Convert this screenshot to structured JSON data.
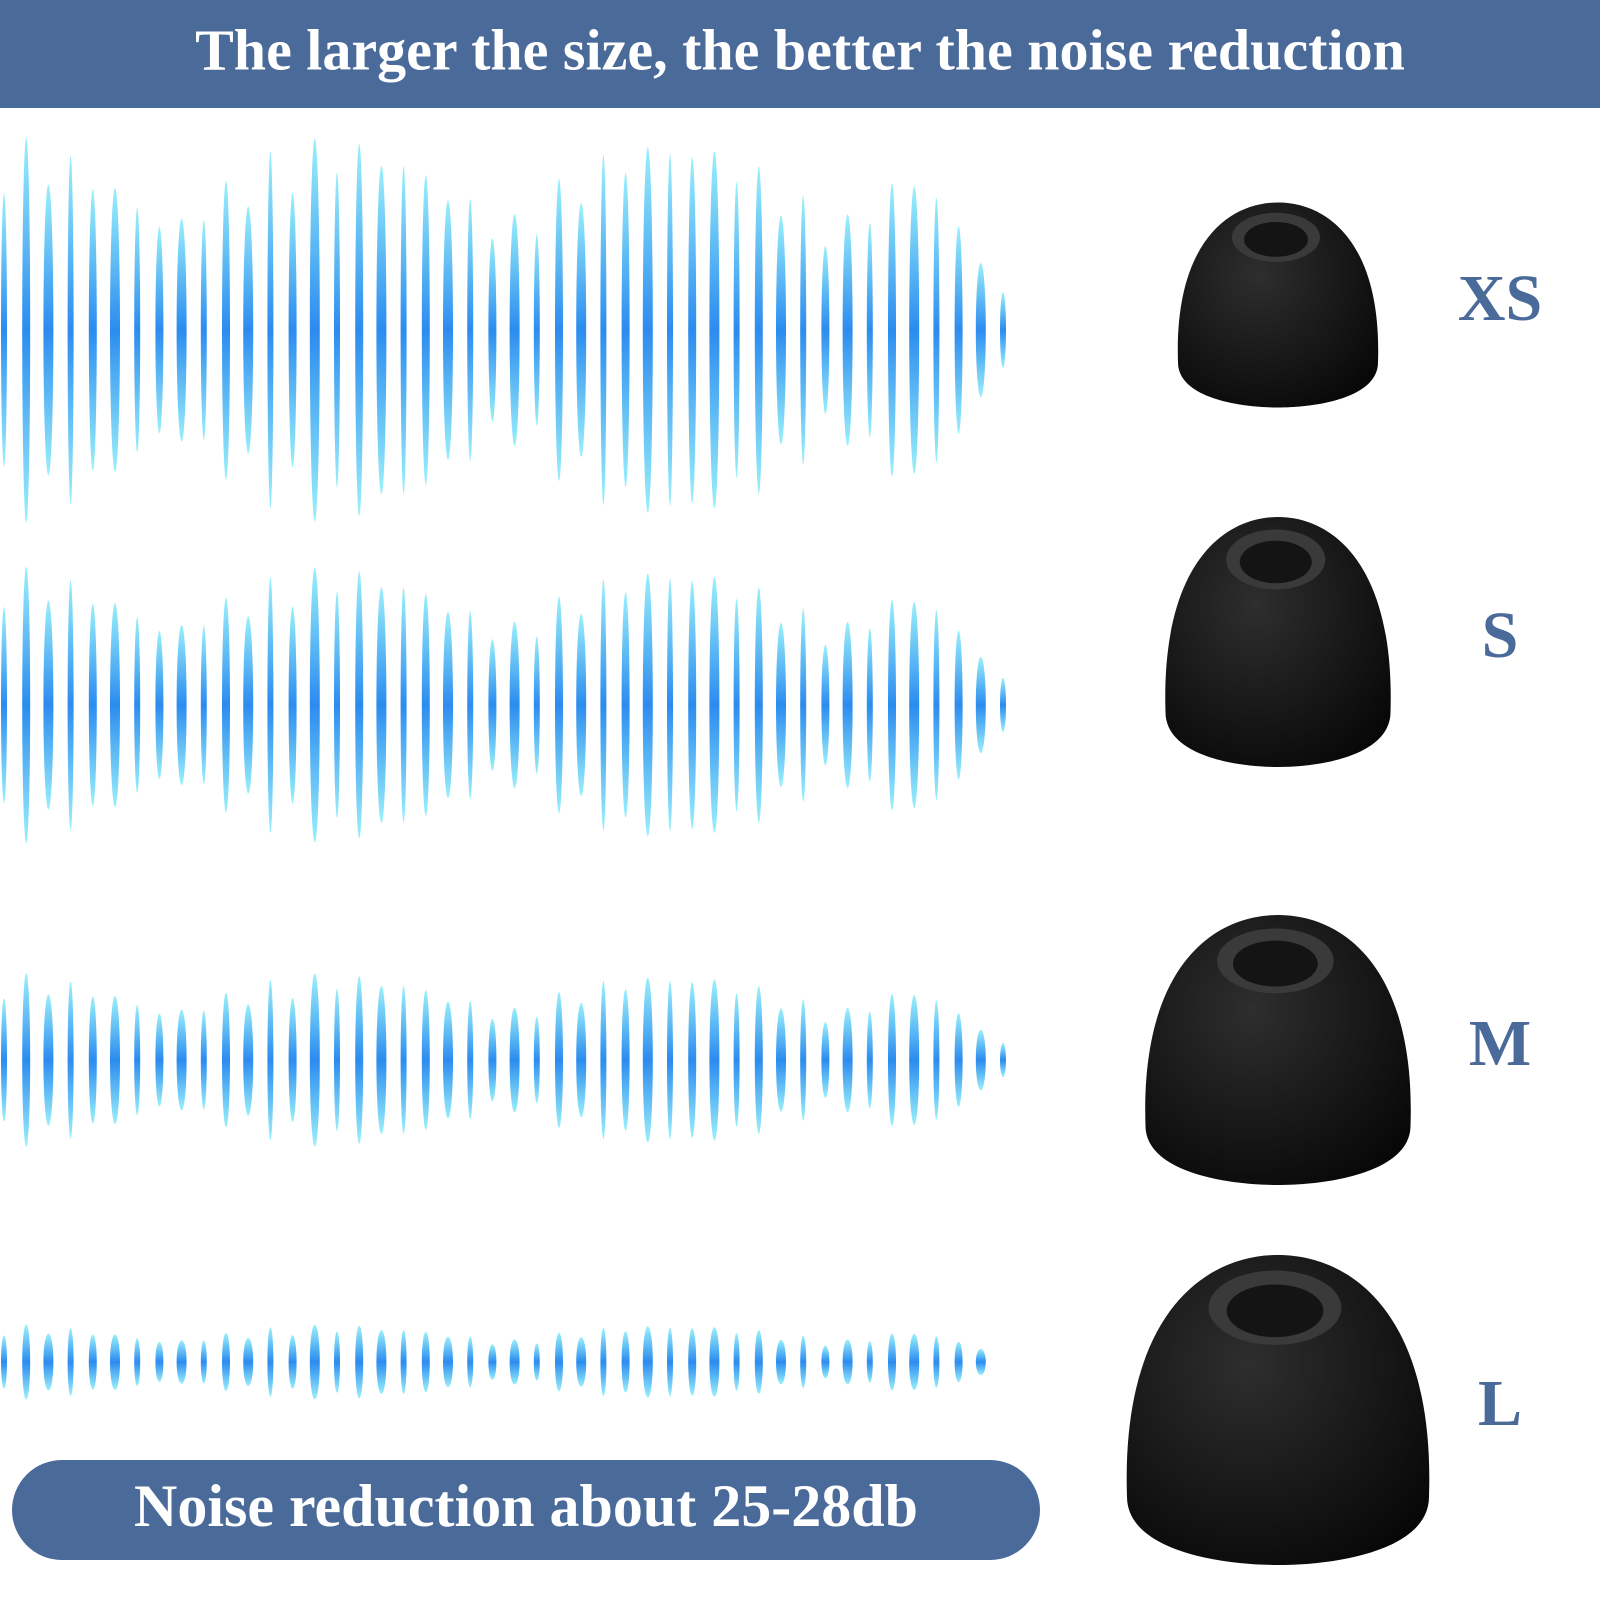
{
  "header": {
    "title": "The larger the size, the better the noise reduction"
  },
  "sizes": [
    "XS",
    "S",
    "M",
    "L"
  ],
  "badge": {
    "text": "Noise reduction about 25-28db"
  }
}
